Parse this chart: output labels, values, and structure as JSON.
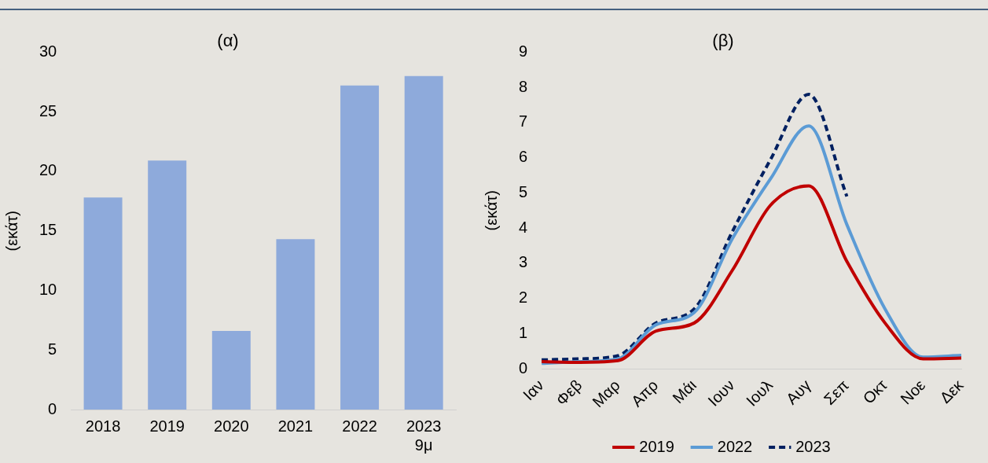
{
  "chart_data": [
    {
      "type": "bar",
      "title": "(α)",
      "ylabel": "(εκάτ)",
      "categories": [
        "2018",
        "2019",
        "2020",
        "2021",
        "2022",
        "2023\n9μ"
      ],
      "values": [
        17.8,
        20.9,
        6.6,
        14.3,
        27.2,
        28.0
      ],
      "color": "#8eaadb",
      "ylim": [
        0,
        30
      ],
      "yticks": [
        0,
        5,
        10,
        15,
        20,
        25,
        30
      ],
      "grid": false,
      "legend": false
    },
    {
      "type": "line",
      "title": "(β)",
      "ylabel": "(εκάτ)",
      "categories": [
        "Ιαν",
        "Φεβ",
        "Μαρ",
        "Απρ",
        "Μάι",
        "Ιουν",
        "Ιουλ",
        "Αυγ",
        "Σεπ",
        "Οκτ",
        "Νοε",
        "Δεκ"
      ],
      "ylim": [
        0,
        9
      ],
      "yticks": [
        0,
        1,
        2,
        3,
        4,
        5,
        6,
        7,
        8,
        9
      ],
      "grid": false,
      "legend": "bottom",
      "marker": "none",
      "series": [
        {
          "name": "2019",
          "color": "#c00000",
          "line_style": "solid",
          "values": [
            0.2,
            0.18,
            0.23,
            1.07,
            1.3,
            2.8,
            4.65,
            5.2,
            3.05,
            1.3,
            0.28,
            0.3
          ]
        },
        {
          "name": "2022",
          "color": "#5b9bd5",
          "line_style": "solid",
          "values": [
            0.15,
            0.2,
            0.28,
            1.25,
            1.6,
            3.7,
            5.4,
            6.9,
            4.1,
            1.7,
            0.33,
            0.38
          ]
        },
        {
          "name": "2023",
          "color": "#002060",
          "line_style": "dashed",
          "values": [
            0.25,
            0.28,
            0.37,
            1.3,
            1.7,
            3.9,
            5.95,
            7.8,
            4.9,
            null,
            null,
            null
          ]
        }
      ]
    }
  ]
}
